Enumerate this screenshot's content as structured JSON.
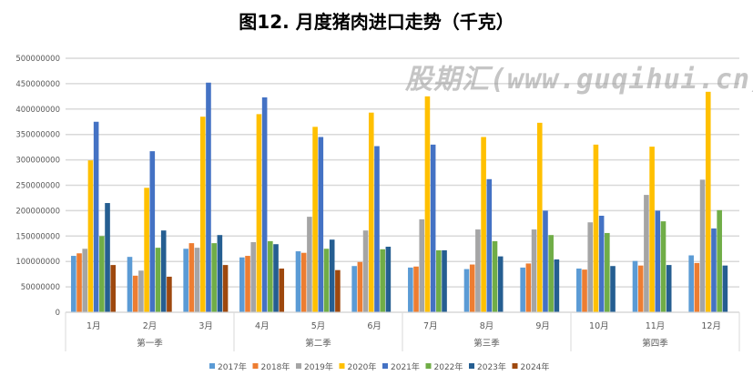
{
  "chart_data": {
    "type": "bar",
    "title": "图12. 月度猪肉进口走势（千克）",
    "categories": [
      "1月",
      "2月",
      "3月",
      "4月",
      "5月",
      "6月",
      "7月",
      "8月",
      "9月",
      "10月",
      "11月",
      "12月"
    ],
    "groups": [
      {
        "label": "第一季",
        "span": 3
      },
      {
        "label": "第二季",
        "span": 3
      },
      {
        "label": "第三季",
        "span": 3
      },
      {
        "label": "第四季",
        "span": 3
      }
    ],
    "ylim": [
      0,
      500000000
    ],
    "yticks": [
      "0",
      "50000000",
      "100000000",
      "150000000",
      "200000000",
      "250000000",
      "300000000",
      "350000000",
      "400000000",
      "450000000",
      "500000000"
    ],
    "grid": true,
    "legend_position": "bottom",
    "series": [
      {
        "name": "2017年",
        "color": "#5B9BD5",
        "values": [
          111000000,
          109000000,
          125000000,
          108000000,
          120000000,
          91000000,
          88000000,
          85000000,
          88000000,
          86000000,
          101000000,
          112000000
        ]
      },
      {
        "name": "2018年",
        "color": "#ED7D31",
        "values": [
          116000000,
          72000000,
          136000000,
          111000000,
          117000000,
          99000000,
          90000000,
          94000000,
          96000000,
          84000000,
          92000000,
          97000000
        ]
      },
      {
        "name": "2019年",
        "color": "#A5A5A5",
        "values": [
          125000000,
          82000000,
          127000000,
          138000000,
          188000000,
          161000000,
          183000000,
          163000000,
          163000000,
          177000000,
          231000000,
          261000000
        ]
      },
      {
        "name": "2020年",
        "color": "#FFC000",
        "values": [
          299000000,
          245000000,
          385000000,
          390000000,
          365000000,
          393000000,
          425000000,
          345000000,
          373000000,
          330000000,
          326000000,
          434000000
        ]
      },
      {
        "name": "2021年",
        "color": "#4472C4",
        "values": [
          375000000,
          317000000,
          452000000,
          423000000,
          345000000,
          327000000,
          330000000,
          262000000,
          200000000,
          190000000,
          200000000,
          165000000
        ]
      },
      {
        "name": "2022年",
        "color": "#70AD47",
        "values": [
          150000000,
          127000000,
          136000000,
          140000000,
          125000000,
          124000000,
          122000000,
          140000000,
          152000000,
          156000000,
          179000000,
          201000000
        ]
      },
      {
        "name": "2023年",
        "color": "#255E91",
        "values": [
          215000000,
          161000000,
          152000000,
          134000000,
          143000000,
          129000000,
          122000000,
          110000000,
          104000000,
          91000000,
          93000000,
          92000000
        ]
      },
      {
        "name": "2024年",
        "color": "#9E480E",
        "values": [
          93000000,
          70000000,
          93000000,
          86000000,
          83000000,
          null,
          null,
          null,
          null,
          null,
          null,
          null
        ]
      }
    ]
  },
  "watermark": "股期汇(www.guqihui.cn)"
}
